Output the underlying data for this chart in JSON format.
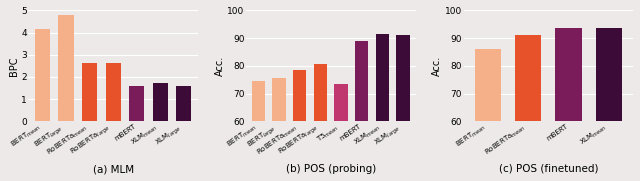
{
  "mlm": {
    "labels": [
      "BERT$_{mean}$",
      "BERT$_{large}$",
      "RoBERTa$_{mean}$",
      "RoBERTa$_{large}$",
      "mBERT",
      "XLM$_{mean}$",
      "XLM$_{large}$"
    ],
    "values": [
      4.15,
      4.8,
      2.65,
      2.65,
      1.58,
      1.73,
      1.6
    ],
    "colors": [
      "#f5b08a",
      "#f5b08a",
      "#e8522a",
      "#e8522a",
      "#7b1c5a",
      "#3d0b38",
      "#3d0b38"
    ],
    "ylabel": "BPC",
    "ylim": [
      0,
      5
    ],
    "yticks": [
      0,
      1,
      2,
      3,
      4,
      5
    ],
    "title": "(a) MLM"
  },
  "pos_probe": {
    "labels": [
      "BERT$_{mean}$",
      "BERT$_{large}$",
      "RoBERTa$_{mean}$",
      "RoBERTa$_{large}$",
      "T5$_{mean}$",
      "mBERT",
      "XLM$_{mean}$",
      "XLM$_{large}$"
    ],
    "values": [
      74.5,
      75.5,
      78.5,
      80.8,
      73.5,
      89.0,
      91.5,
      91.2
    ],
    "colors": [
      "#f5b08a",
      "#f5b08a",
      "#e8522a",
      "#e8522a",
      "#c0366e",
      "#7b1c5a",
      "#3d0b38",
      "#3d0b38"
    ],
    "ylabel": "Acc.",
    "ylim": [
      60,
      100
    ],
    "yticks": [
      60,
      70,
      80,
      90,
      100
    ],
    "title": "(b) POS (probing)"
  },
  "pos_fine": {
    "labels": [
      "BERT$_{mean}$",
      "RoBERTa$_{mean}$",
      "mBERT",
      "XLM$_{mean}$"
    ],
    "values": [
      86.0,
      91.0,
      93.5,
      93.5
    ],
    "colors": [
      "#f5b08a",
      "#e8522a",
      "#7b1c5a",
      "#3d0b38"
    ],
    "ylabel": "Acc.",
    "ylim": [
      60,
      100
    ],
    "yticks": [
      60,
      70,
      80,
      90,
      100
    ],
    "title": "(c) POS (finetuned)"
  },
  "background_color": "#ede9e9",
  "label_fontsize": 5.0,
  "title_fontsize": 7.5,
  "ylabel_fontsize": 7,
  "tick_fontsize": 6.5,
  "grid_color": "#ffffff",
  "bar_width": 0.65
}
